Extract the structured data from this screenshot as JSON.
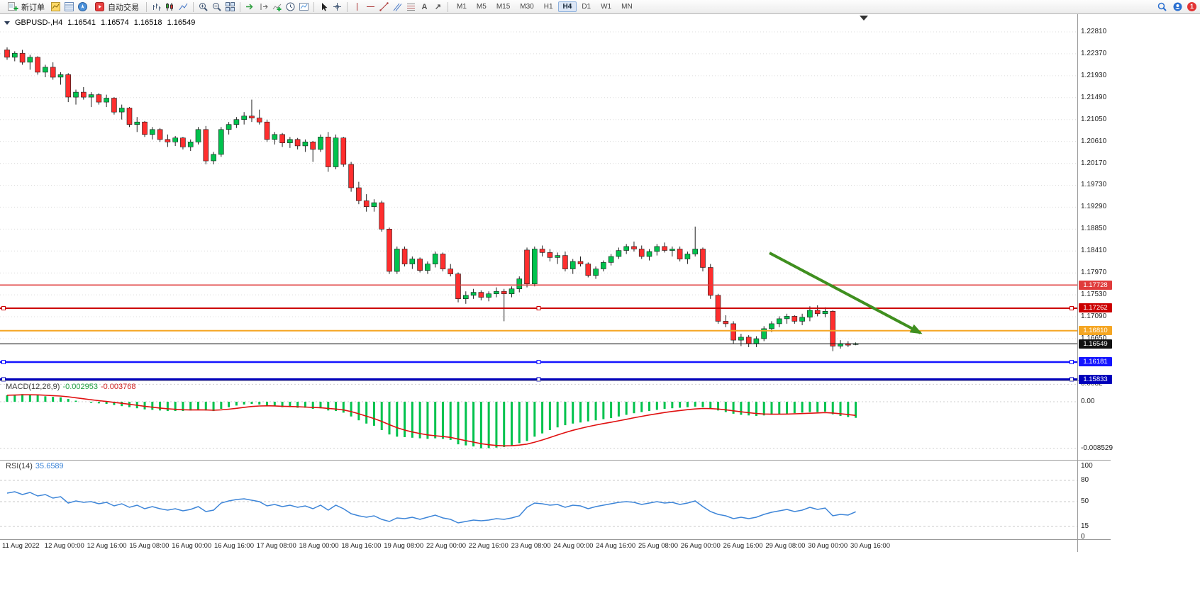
{
  "toolbar": {
    "new_order": "新订单",
    "auto_trading": "自动交易",
    "timeframes": [
      "M1",
      "M5",
      "M15",
      "M30",
      "H1",
      "H4",
      "D1",
      "W1",
      "MN"
    ],
    "active_timeframe": "H4",
    "notification_count": "1",
    "icon_glyphs": {
      "text_tool": "A",
      "arrow_tool": "↗"
    }
  },
  "chart_header": {
    "symbol": "GBPUSD-,H4",
    "open": "1.16541",
    "high": "1.16574",
    "low": "1.16518",
    "close": "1.16549"
  },
  "indicators": {
    "macd": {
      "name": "MACD(12,26,9)",
      "value_main": "-0.002953",
      "value_signal": "-0.003768"
    },
    "rsi": {
      "name": "RSI(14)",
      "value": "35.6589"
    }
  },
  "chart_data": {
    "type": "candlestick",
    "symbol": "GBPUSD",
    "timeframe": "H4",
    "price_axis_ticks": [
      "1.22810",
      "1.22370",
      "1.21930",
      "1.21490",
      "1.21050",
      "1.20610",
      "1.20170",
      "1.19730",
      "1.19290",
      "1.18850",
      "1.18410",
      "1.17970",
      "1.17530",
      "1.17090",
      "1.16650"
    ],
    "candles": [
      [
        1.2245,
        1.225,
        1.2225,
        1.223
      ],
      [
        1.223,
        1.2242,
        1.2222,
        1.2238
      ],
      [
        1.2238,
        1.2245,
        1.2215,
        1.222
      ],
      [
        1.222,
        1.2235,
        1.2205,
        1.223
      ],
      [
        1.223,
        1.2232,
        1.2195,
        1.22
      ],
      [
        1.22,
        1.2215,
        1.219,
        1.221
      ],
      [
        1.221,
        1.222,
        1.2185,
        1.219
      ],
      [
        1.219,
        1.22,
        1.2175,
        1.2195
      ],
      [
        1.2195,
        1.2198,
        1.214,
        1.215
      ],
      [
        1.215,
        1.2165,
        1.2135,
        1.216
      ],
      [
        1.216,
        1.217,
        1.2145,
        1.215
      ],
      [
        1.215,
        1.216,
        1.213,
        1.2155
      ],
      [
        1.2155,
        1.2158,
        1.2135,
        1.214
      ],
      [
        1.214,
        1.2155,
        1.213,
        1.2148
      ],
      [
        1.2148,
        1.215,
        1.2115,
        1.212
      ],
      [
        1.212,
        1.2135,
        1.2105,
        1.2128
      ],
      [
        1.2128,
        1.213,
        1.209,
        1.2095
      ],
      [
        1.2095,
        1.211,
        1.208,
        1.21
      ],
      [
        1.21,
        1.2102,
        1.207,
        1.2075
      ],
      [
        1.2075,
        1.209,
        1.2065,
        1.2085
      ],
      [
        1.2085,
        1.2088,
        1.206,
        1.2065
      ],
      [
        1.2065,
        1.2075,
        1.205,
        1.206
      ],
      [
        1.206,
        1.2072,
        1.2052,
        1.2068
      ],
      [
        1.2068,
        1.207,
        1.2045,
        1.205
      ],
      [
        1.205,
        1.2065,
        1.2042,
        1.206
      ],
      [
        1.206,
        1.209,
        1.2055,
        1.2085
      ],
      [
        1.2085,
        1.2092,
        1.2015,
        1.2022
      ],
      [
        1.2022,
        1.204,
        1.2015,
        1.2035
      ],
      [
        1.2035,
        1.209,
        1.203,
        1.2085
      ],
      [
        1.2085,
        1.21,
        1.2075,
        1.2095
      ],
      [
        1.2095,
        1.211,
        1.2088,
        1.2105
      ],
      [
        1.2105,
        1.212,
        1.2095,
        1.2112
      ],
      [
        1.2112,
        1.2145,
        1.21,
        1.2108
      ],
      [
        1.2108,
        1.2125,
        1.2095,
        1.21
      ],
      [
        1.21,
        1.2105,
        1.206,
        1.2065
      ],
      [
        1.2065,
        1.208,
        1.2055,
        1.2075
      ],
      [
        1.2075,
        1.2078,
        1.205,
        1.2058
      ],
      [
        1.2058,
        1.207,
        1.2048,
        1.2065
      ],
      [
        1.2065,
        1.2068,
        1.2045,
        1.2052
      ],
      [
        1.2052,
        1.2065,
        1.204,
        1.206
      ],
      [
        1.206,
        1.2062,
        1.202,
        1.2045
      ],
      [
        1.2045,
        1.2075,
        1.204,
        1.207
      ],
      [
        1.207,
        1.208,
        1.2,
        1.201
      ],
      [
        1.201,
        1.2075,
        1.2005,
        1.2068
      ],
      [
        1.2068,
        1.207,
        1.201,
        1.2015
      ],
      [
        1.2015,
        1.202,
        1.196,
        1.1968
      ],
      [
        1.1968,
        1.198,
        1.1935,
        1.1942
      ],
      [
        1.1942,
        1.1955,
        1.192,
        1.193
      ],
      [
        1.193,
        1.1945,
        1.192,
        1.1938
      ],
      [
        1.1938,
        1.1942,
        1.188,
        1.1885
      ],
      [
        1.1885,
        1.1888,
        1.1795,
        1.18
      ],
      [
        1.18,
        1.185,
        1.1795,
        1.1845
      ],
      [
        1.1845,
        1.185,
        1.181,
        1.1815
      ],
      [
        1.1815,
        1.183,
        1.1805,
        1.1825
      ],
      [
        1.1825,
        1.1828,
        1.1798,
        1.1802
      ],
      [
        1.1802,
        1.182,
        1.1795,
        1.1815
      ],
      [
        1.1815,
        1.184,
        1.1808,
        1.1835
      ],
      [
        1.1835,
        1.1838,
        1.18,
        1.1805
      ],
      [
        1.1805,
        1.1815,
        1.179,
        1.1795
      ],
      [
        1.1795,
        1.1798,
        1.1738,
        1.1745
      ],
      [
        1.1745,
        1.176,
        1.1735,
        1.1752
      ],
      [
        1.1752,
        1.1765,
        1.1745,
        1.1758
      ],
      [
        1.1758,
        1.1762,
        1.1742,
        1.1748
      ],
      [
        1.1748,
        1.176,
        1.174,
        1.1755
      ],
      [
        1.1755,
        1.1768,
        1.1748,
        1.176
      ],
      [
        1.176,
        1.1765,
        1.17,
        1.1755
      ],
      [
        1.1755,
        1.177,
        1.1748,
        1.1765
      ],
      [
        1.1765,
        1.179,
        1.1758,
        1.1785
      ],
      [
        1.1843,
        1.1848,
        1.1768,
        1.1775
      ],
      [
        1.1775,
        1.185,
        1.177,
        1.1845
      ],
      [
        1.1845,
        1.1852,
        1.183,
        1.1838
      ],
      [
        1.1838,
        1.1845,
        1.182,
        1.1828
      ],
      [
        1.1828,
        1.1838,
        1.1815,
        1.1832
      ],
      [
        1.1832,
        1.184,
        1.18,
        1.1805
      ],
      [
        1.1805,
        1.1825,
        1.1795,
        1.182
      ],
      [
        1.182,
        1.183,
        1.181,
        1.1815
      ],
      [
        1.1815,
        1.1818,
        1.1788,
        1.1792
      ],
      [
        1.1792,
        1.181,
        1.1785,
        1.1805
      ],
      [
        1.1805,
        1.1822,
        1.18,
        1.1818
      ],
      [
        1.1818,
        1.1835,
        1.1812,
        1.183
      ],
      [
        1.183,
        1.1848,
        1.1825,
        1.1842
      ],
      [
        1.1842,
        1.1855,
        1.1835,
        1.185
      ],
      [
        1.185,
        1.186,
        1.184,
        1.1845
      ],
      [
        1.1845,
        1.1852,
        1.1825,
        1.183
      ],
      [
        1.183,
        1.1845,
        1.1822,
        1.184
      ],
      [
        1.184,
        1.1855,
        1.1832,
        1.185
      ],
      [
        1.185,
        1.1858,
        1.1838,
        1.1842
      ],
      [
        1.1842,
        1.185,
        1.183,
        1.1845
      ],
      [
        1.1845,
        1.185,
        1.182,
        1.1825
      ],
      [
        1.1825,
        1.184,
        1.1815,
        1.1835
      ],
      [
        1.1835,
        1.189,
        1.183,
        1.1845
      ],
      [
        1.1845,
        1.1848,
        1.18,
        1.1808
      ],
      [
        1.1808,
        1.1815,
        1.1745,
        1.1752
      ],
      [
        1.1752,
        1.1755,
        1.1695,
        1.17
      ],
      [
        1.17,
        1.1712,
        1.1688,
        1.1695
      ],
      [
        1.1695,
        1.17,
        1.1655,
        1.1662
      ],
      [
        1.1662,
        1.1675,
        1.165,
        1.1668
      ],
      [
        1.1668,
        1.1672,
        1.1648,
        1.1655
      ],
      [
        1.1655,
        1.167,
        1.1648,
        1.1665
      ],
      [
        1.1665,
        1.169,
        1.166,
        1.1685
      ],
      [
        1.1685,
        1.17,
        1.1678,
        1.1695
      ],
      [
        1.1695,
        1.171,
        1.1688,
        1.1705
      ],
      [
        1.1705,
        1.1715,
        1.1695,
        1.171
      ],
      [
        1.171,
        1.1712,
        1.1695,
        1.17
      ],
      [
        1.17,
        1.1715,
        1.1692,
        1.1708
      ],
      [
        1.1708,
        1.173,
        1.17,
        1.1722
      ],
      [
        1.1722,
        1.1732,
        1.171,
        1.1715
      ],
      [
        1.1715,
        1.1728,
        1.1708,
        1.172
      ],
      [
        1.172,
        1.1722,
        1.164,
        1.165
      ],
      [
        1.165,
        1.1662,
        1.1645,
        1.1655
      ],
      [
        1.1655,
        1.166,
        1.1648,
        1.1652
      ],
      [
        1.16541,
        1.16574,
        1.16518,
        1.16549
      ]
    ],
    "hlines": [
      {
        "price": "1.17728",
        "color": "#e03c3c",
        "width": 1.5,
        "handles": false
      },
      {
        "price": "1.17262",
        "color": "#cc0000",
        "width": 2,
        "handles": true
      },
      {
        "price": "1.16810",
        "color": "#f5a623",
        "width": 2,
        "handles": false
      },
      {
        "price": "1.16549",
        "color": "#111111",
        "width": 1,
        "handles": false
      },
      {
        "price": "1.16181",
        "color": "#1414ff",
        "width": 2.5,
        "handles": true
      },
      {
        "price": "1.15833",
        "color": "#0000bb",
        "width": 3,
        "handles": true
      }
    ],
    "arrow_annotation": {
      "color": "#3f8f1f",
      "from": [
        1085,
        357
      ],
      "to": [
        1298,
        470
      ]
    },
    "macd": {
      "values": [
        0.0012,
        0.0013,
        0.0014,
        0.0013,
        0.0012,
        0.001,
        0.0009,
        0.0008,
        0.0005,
        0.0002,
        0.0,
        -0.0002,
        -0.0003,
        -0.0004,
        -0.0006,
        -0.0008,
        -0.001,
        -0.0012,
        -0.0014,
        -0.0015,
        -0.0016,
        -0.0017,
        -0.0017,
        -0.0017,
        -0.0016,
        -0.0014,
        -0.0016,
        -0.0017,
        -0.0013,
        -0.001,
        -0.0007,
        -0.0005,
        -0.0004,
        -0.0005,
        -0.0007,
        -0.0008,
        -0.001,
        -0.001,
        -0.0011,
        -0.0011,
        -0.0013,
        -0.0012,
        -0.0016,
        -0.0017,
        -0.002,
        -0.0027,
        -0.0034,
        -0.004,
        -0.0044,
        -0.0052,
        -0.006,
        -0.0064,
        -0.0065,
        -0.0066,
        -0.0067,
        -0.0068,
        -0.0067,
        -0.0068,
        -0.007,
        -0.0078,
        -0.008,
        -0.0082,
        -0.008529,
        -0.0085,
        -0.0084,
        -0.0083,
        -0.008,
        -0.0076,
        -0.0072,
        -0.0064,
        -0.0058,
        -0.0052,
        -0.0047,
        -0.0043,
        -0.004,
        -0.0038,
        -0.0036,
        -0.0034,
        -0.0032,
        -0.003,
        -0.0027,
        -0.0024,
        -0.0021,
        -0.0019,
        -0.0017,
        -0.0015,
        -0.0013,
        -0.0012,
        -0.0011,
        -0.001,
        -0.0009,
        -0.001,
        -0.0013,
        -0.0016,
        -0.0019,
        -0.0022,
        -0.0024,
        -0.0025,
        -0.0026,
        -0.0025,
        -0.0024,
        -0.0023,
        -0.0022,
        -0.0021,
        -0.002,
        -0.0019,
        -0.0019,
        -0.0018,
        -0.0023,
        -0.0026,
        -0.0028,
        -0.002953
      ],
      "axis_ticks": [
        "0.0032",
        "0.00",
        "-0.008529"
      ]
    },
    "rsi": {
      "values": [
        62,
        64,
        60,
        63,
        58,
        60,
        55,
        57,
        48,
        51,
        49,
        50,
        47,
        49,
        44,
        47,
        42,
        45,
        40,
        43,
        40,
        38,
        40,
        37,
        39,
        43,
        36,
        38,
        48,
        51,
        53,
        54,
        52,
        50,
        44,
        46,
        43,
        45,
        42,
        44,
        40,
        45,
        38,
        45,
        40,
        33,
        30,
        28,
        30,
        25,
        22,
        27,
        26,
        28,
        25,
        28,
        31,
        27,
        25,
        20,
        22,
        24,
        23,
        24,
        26,
        25,
        27,
        30,
        42,
        48,
        47,
        45,
        46,
        42,
        45,
        44,
        40,
        43,
        45,
        47,
        49,
        50,
        49,
        46,
        48,
        50,
        48,
        49,
        46,
        48,
        51,
        43,
        36,
        32,
        30,
        26,
        28,
        26,
        28,
        32,
        35,
        37,
        39,
        36,
        38,
        42,
        39,
        41,
        30,
        32,
        31,
        35.66
      ],
      "axis_ticks": [
        "100",
        "80",
        "50",
        "15",
        "0"
      ],
      "levels": [
        80,
        50,
        15
      ]
    },
    "time_axis": [
      "11 Aug 2022",
      "12 Aug 00:00",
      "12 Aug 16:00",
      "15 Aug 08:00",
      "16 Aug 00:00",
      "16 Aug 16:00",
      "17 Aug 08:00",
      "18 Aug 00:00",
      "18 Aug 16:00",
      "19 Aug 08:00",
      "22 Aug 00:00",
      "22 Aug 16:00",
      "23 Aug 08:00",
      "24 Aug 00:00",
      "24 Aug 16:00",
      "25 Aug 08:00",
      "26 Aug 00:00",
      "26 Aug 16:00",
      "29 Aug 08:00",
      "30 Aug 00:00",
      "30 Aug 16:00"
    ],
    "colors": {
      "bull": "#00c24d",
      "bear": "#ff2e2e",
      "wick": "#222222",
      "macd_hist": "#00c24d",
      "macd_signal": "#e01010",
      "rsi": "#3d85d8",
      "grid": "#dcdcdc"
    }
  }
}
